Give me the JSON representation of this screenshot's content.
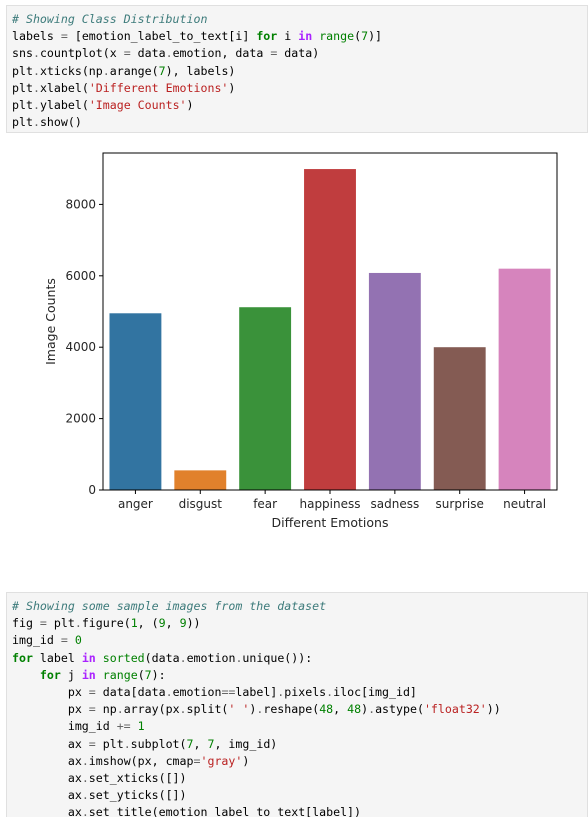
{
  "cell1": {
    "lines": [
      [
        [
          "cm",
          "# Showing Class Distribution"
        ]
      ],
      [
        [
          "",
          "labels "
        ],
        [
          "op",
          "="
        ],
        [
          "",
          " [emotion_label_to_text[i] "
        ],
        [
          "kw",
          "for"
        ],
        [
          "",
          " i "
        ],
        [
          "kwn",
          "in"
        ],
        [
          "",
          " "
        ],
        [
          "bi",
          "range"
        ],
        [
          "",
          "("
        ],
        [
          "nu",
          "7"
        ],
        [
          "",
          ")]"
        ]
      ],
      [
        [
          "",
          "sns"
        ],
        [
          "op",
          "."
        ],
        [
          "",
          "countplot(x "
        ],
        [
          "op",
          "="
        ],
        [
          "",
          " data"
        ],
        [
          "op",
          "."
        ],
        [
          "",
          "emotion, data "
        ],
        [
          "op",
          "="
        ],
        [
          "",
          " data)"
        ]
      ],
      [
        [
          "",
          "plt"
        ],
        [
          "op",
          "."
        ],
        [
          "",
          "xticks(np"
        ],
        [
          "op",
          "."
        ],
        [
          "",
          "arange("
        ],
        [
          "nu",
          "7"
        ],
        [
          "",
          "), labels)"
        ]
      ],
      [
        [
          "",
          "plt"
        ],
        [
          "op",
          "."
        ],
        [
          "",
          "xlabel("
        ],
        [
          "st",
          "'Different Emotions'"
        ],
        [
          "",
          ")"
        ]
      ],
      [
        [
          "",
          "plt"
        ],
        [
          "op",
          "."
        ],
        [
          "",
          "ylabel("
        ],
        [
          "st",
          "'Image Counts'"
        ],
        [
          "",
          ")"
        ]
      ],
      [
        [
          "",
          "plt"
        ],
        [
          "op",
          "."
        ],
        [
          "",
          "show()"
        ]
      ]
    ]
  },
  "cell2": {
    "lines": [
      [
        [
          "cm",
          "# Showing some sample images from the dataset"
        ]
      ],
      [
        [
          "",
          "fig "
        ],
        [
          "op",
          "="
        ],
        [
          "",
          " plt"
        ],
        [
          "op",
          "."
        ],
        [
          "",
          "figure("
        ],
        [
          "nu",
          "1"
        ],
        [
          "",
          ", ("
        ],
        [
          "nu",
          "9"
        ],
        [
          "",
          ", "
        ],
        [
          "nu",
          "9"
        ],
        [
          "",
          "))"
        ]
      ],
      [
        [
          "",
          "img_id "
        ],
        [
          "op",
          "="
        ],
        [
          "",
          " "
        ],
        [
          "nu",
          "0"
        ]
      ],
      [
        [
          "kw",
          "for"
        ],
        [
          "",
          " label "
        ],
        [
          "kwn",
          "in"
        ],
        [
          "",
          " "
        ],
        [
          "bi",
          "sorted"
        ],
        [
          "",
          "(data"
        ],
        [
          "op",
          "."
        ],
        [
          "",
          "emotion"
        ],
        [
          "op",
          "."
        ],
        [
          "",
          "unique()):"
        ]
      ],
      [
        [
          "",
          "    "
        ],
        [
          "kw",
          "for"
        ],
        [
          "",
          " j "
        ],
        [
          "kwn",
          "in"
        ],
        [
          "",
          " "
        ],
        [
          "bi",
          "range"
        ],
        [
          "",
          "("
        ],
        [
          "nu",
          "7"
        ],
        [
          "",
          "):"
        ]
      ],
      [
        [
          "",
          "        px "
        ],
        [
          "op",
          "="
        ],
        [
          "",
          " data[data"
        ],
        [
          "op",
          "."
        ],
        [
          "",
          "emotion"
        ],
        [
          "op",
          "=="
        ],
        [
          "",
          "label]"
        ],
        [
          "op",
          "."
        ],
        [
          "",
          "pixels"
        ],
        [
          "op",
          "."
        ],
        [
          "",
          "iloc[img_id]"
        ]
      ],
      [
        [
          "",
          "        px "
        ],
        [
          "op",
          "="
        ],
        [
          "",
          " np"
        ],
        [
          "op",
          "."
        ],
        [
          "",
          "array(px"
        ],
        [
          "op",
          "."
        ],
        [
          "",
          "split("
        ],
        [
          "st",
          "' '"
        ],
        [
          "",
          ")"
        ],
        [
          "op",
          "."
        ],
        [
          "",
          "reshape("
        ],
        [
          "nu",
          "48"
        ],
        [
          "",
          ", "
        ],
        [
          "nu",
          "48"
        ],
        [
          "",
          ")"
        ],
        [
          "op",
          "."
        ],
        [
          "",
          "astype("
        ],
        [
          "st",
          "'float32'"
        ],
        [
          "",
          "))"
        ]
      ],
      [
        [
          "",
          "        img_id "
        ],
        [
          "op",
          "+="
        ],
        [
          "",
          " "
        ],
        [
          "nu",
          "1"
        ]
      ],
      [
        [
          "",
          "        ax "
        ],
        [
          "op",
          "="
        ],
        [
          "",
          " plt"
        ],
        [
          "op",
          "."
        ],
        [
          "",
          "subplot("
        ],
        [
          "nu",
          "7"
        ],
        [
          "",
          ", "
        ],
        [
          "nu",
          "7"
        ],
        [
          "",
          ", img_id)"
        ]
      ],
      [
        [
          "",
          "        ax"
        ],
        [
          "op",
          "."
        ],
        [
          "",
          "imshow(px, cmap"
        ],
        [
          "op",
          "="
        ],
        [
          "st",
          "'gray'"
        ],
        [
          "",
          ")"
        ]
      ],
      [
        [
          "",
          "        ax"
        ],
        [
          "op",
          "."
        ],
        [
          "",
          "set_xticks([])"
        ]
      ],
      [
        [
          "",
          "        ax"
        ],
        [
          "op",
          "."
        ],
        [
          "",
          "set_yticks([])"
        ]
      ],
      [
        [
          "",
          "        ax"
        ],
        [
          "op",
          "."
        ],
        [
          "",
          "set_title(emotion_label_to_text[label])"
        ]
      ]
    ]
  },
  "chart_data": {
    "type": "bar",
    "categories": [
      "anger",
      "disgust",
      "fear",
      "happiness",
      "sadness",
      "surprise",
      "neutral"
    ],
    "values": [
      4950,
      550,
      5120,
      8990,
      6080,
      4000,
      6200
    ],
    "colors": [
      "#3274a1",
      "#e1812c",
      "#3a923a",
      "#c03d3e",
      "#9372b2",
      "#845b53",
      "#d684bd"
    ],
    "xlabel": "Different Emotions",
    "ylabel": "Image Counts",
    "ylim": [
      0,
      9440
    ],
    "yticks": [
      0,
      2000,
      4000,
      6000,
      8000
    ],
    "ytick_labels": [
      "0",
      "2000",
      "4000",
      "6000",
      "8000"
    ],
    "grid": false
  }
}
